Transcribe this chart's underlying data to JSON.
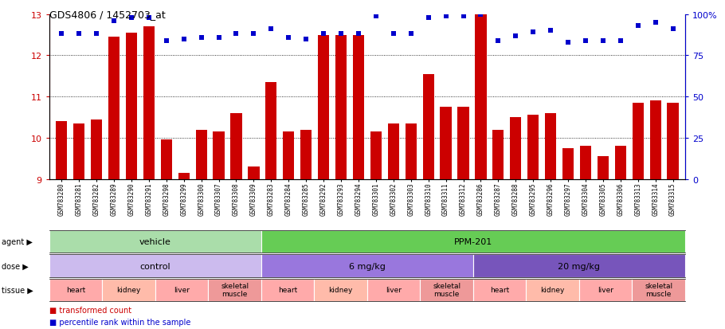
{
  "title": "GDS4806 / 1452703_at",
  "samples": [
    "GSM783280",
    "GSM783281",
    "GSM783282",
    "GSM783289",
    "GSM783290",
    "GSM783291",
    "GSM783298",
    "GSM783299",
    "GSM783300",
    "GSM783307",
    "GSM783308",
    "GSM783309",
    "GSM783283",
    "GSM783284",
    "GSM783285",
    "GSM783292",
    "GSM783293",
    "GSM783294",
    "GSM783301",
    "GSM783302",
    "GSM783303",
    "GSM783310",
    "GSM783311",
    "GSM783312",
    "GSM783286",
    "GSM783287",
    "GSM783288",
    "GSM783295",
    "GSM783296",
    "GSM783297",
    "GSM783304",
    "GSM783305",
    "GSM783306",
    "GSM783313",
    "GSM783314",
    "GSM783315"
  ],
  "bar_values": [
    10.4,
    10.35,
    10.45,
    12.45,
    12.55,
    12.7,
    9.95,
    9.15,
    10.2,
    10.15,
    10.6,
    9.3,
    11.35,
    10.15,
    10.2,
    12.5,
    12.5,
    12.5,
    10.15,
    10.35,
    10.35,
    11.55,
    10.75,
    10.75,
    13.0,
    10.2,
    10.5,
    10.55,
    10.6,
    9.75,
    9.8,
    9.55,
    9.8,
    10.85,
    10.9,
    10.85
  ],
  "percentile_values": [
    88,
    88,
    88,
    96,
    98,
    98,
    84,
    85,
    86,
    86,
    88,
    88,
    91,
    86,
    85,
    88,
    88,
    88,
    99,
    88,
    88,
    98,
    99,
    99,
    100,
    84,
    87,
    89,
    90,
    83,
    84,
    84,
    84,
    93,
    95,
    91
  ],
  "bar_color": "#cc0000",
  "dot_color": "#0000cc",
  "ymin": 9,
  "ymax": 13,
  "y2min": 0,
  "y2max": 100,
  "yticks": [
    9,
    10,
    11,
    12,
    13
  ],
  "y2ticks": [
    0,
    25,
    50,
    75,
    100
  ],
  "agent_groups": [
    {
      "label": "vehicle",
      "start": 0,
      "end": 11,
      "color": "#aaddaa"
    },
    {
      "label": "PPM-201",
      "start": 12,
      "end": 35,
      "color": "#66cc55"
    }
  ],
  "dose_groups": [
    {
      "label": "control",
      "start": 0,
      "end": 11,
      "color": "#ccbbee"
    },
    {
      "label": "6 mg/kg",
      "start": 12,
      "end": 23,
      "color": "#9977dd"
    },
    {
      "label": "20 mg/kg",
      "start": 24,
      "end": 35,
      "color": "#7755bb"
    }
  ],
  "tissue_groups": [
    {
      "label": "heart",
      "start": 0,
      "end": 2,
      "color": "#ffaaaa"
    },
    {
      "label": "kidney",
      "start": 3,
      "end": 5,
      "color": "#ffbbaa"
    },
    {
      "label": "liver",
      "start": 6,
      "end": 8,
      "color": "#ffaaaa"
    },
    {
      "label": "skeletal\nmuscle",
      "start": 9,
      "end": 11,
      "color": "#ee9999"
    },
    {
      "label": "heart",
      "start": 12,
      "end": 14,
      "color": "#ffaaaa"
    },
    {
      "label": "kidney",
      "start": 15,
      "end": 17,
      "color": "#ffbbaa"
    },
    {
      "label": "liver",
      "start": 18,
      "end": 20,
      "color": "#ffaaaa"
    },
    {
      "label": "skeletal\nmuscle",
      "start": 21,
      "end": 23,
      "color": "#ee9999"
    },
    {
      "label": "heart",
      "start": 24,
      "end": 26,
      "color": "#ffaaaa"
    },
    {
      "label": "kidney",
      "start": 27,
      "end": 29,
      "color": "#ffbbaa"
    },
    {
      "label": "liver",
      "start": 30,
      "end": 32,
      "color": "#ffaaaa"
    },
    {
      "label": "skeletal\nmuscle",
      "start": 33,
      "end": 35,
      "color": "#ee9999"
    }
  ],
  "row_labels": [
    "agent",
    "dose",
    "tissue"
  ],
  "legend_items": [
    {
      "label": "transformed count",
      "color": "#cc0000"
    },
    {
      "label": "percentile rank within the sample",
      "color": "#0000cc"
    }
  ]
}
